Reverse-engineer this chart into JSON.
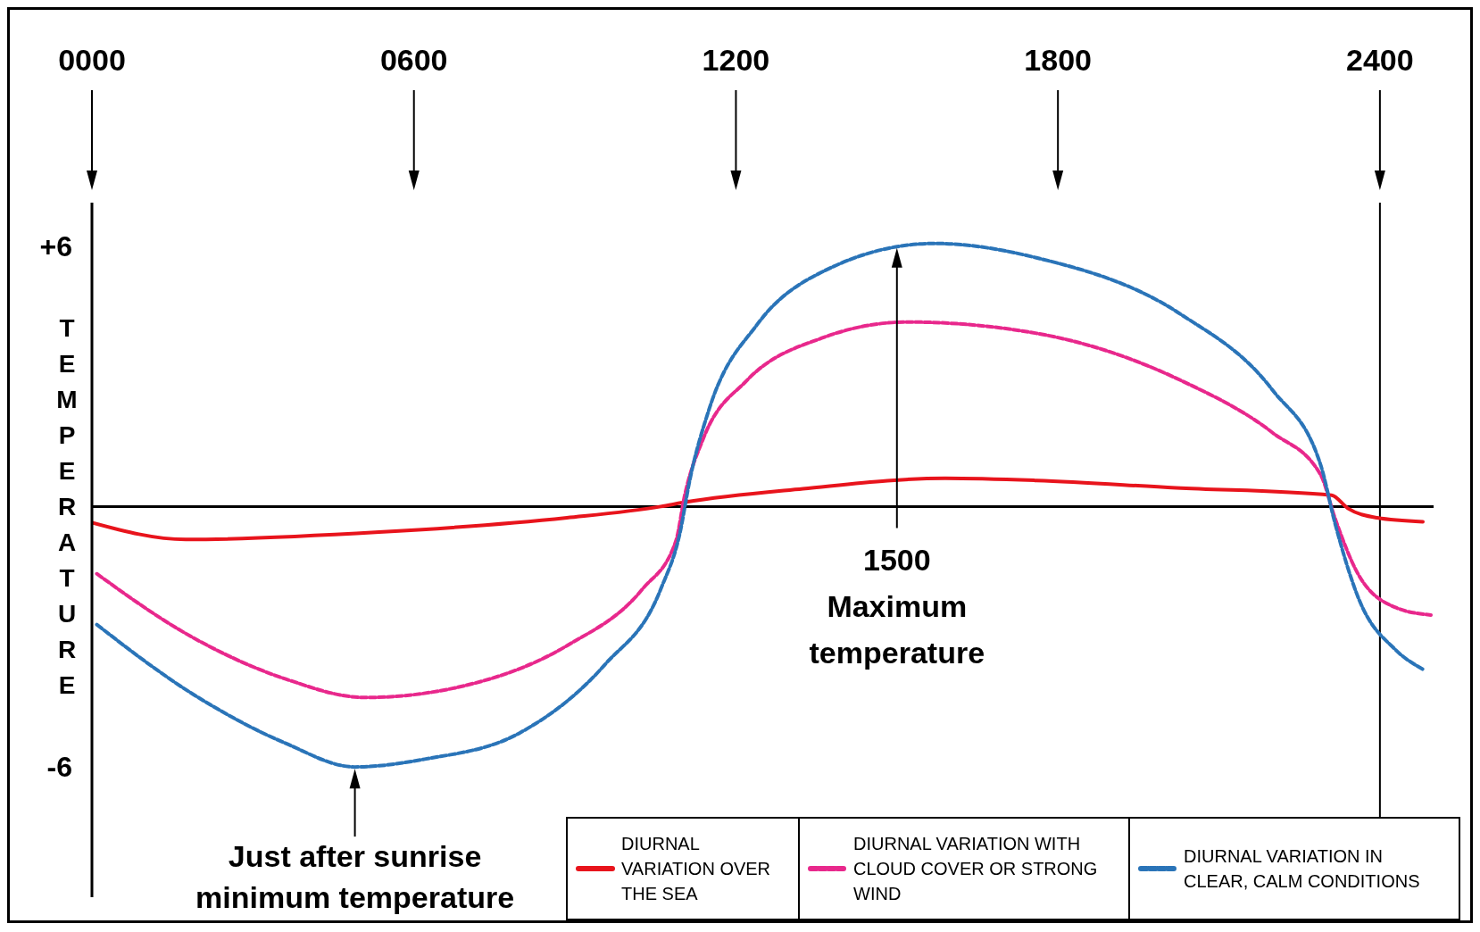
{
  "chart_data": {
    "type": "line",
    "ylabel": "TEMPERATURE",
    "xlim": [
      0,
      2500
    ],
    "ylim": [
      -9,
      7
    ],
    "xticks": [
      {
        "value": 0,
        "label": "0000"
      },
      {
        "value": 600,
        "label": "0600"
      },
      {
        "value": 1200,
        "label": "1200"
      },
      {
        "value": 1800,
        "label": "1800"
      },
      {
        "value": 2400,
        "label": "2400"
      }
    ],
    "yticks": [
      {
        "value": 6,
        "label": "+6"
      },
      -6
    ],
    "grid": false,
    "legend": "bottom right",
    "marker": "none",
    "series": [
      {
        "name": "DIURNAL VARIATION OVER THE SEA",
        "color": "#e8141c",
        "line_style": "solid",
        "x": [
          0,
          175,
          535,
          885,
          1060,
          1105,
          1325,
          1590,
          1760,
          2020,
          2310,
          2340,
          2395,
          2480
        ],
        "values": [
          -0.37,
          -0.76,
          -0.59,
          -0.26,
          0,
          0.1,
          0.41,
          0.65,
          0.6,
          0.43,
          0.26,
          -0.04,
          -0.26,
          -0.35
        ]
      },
      {
        "name": "DIURNAL VARIATION WITH CLOUD COVER OR STRONG WIND",
        "color": "#e8288c",
        "line_style": "dashed",
        "x": [
          9,
          184,
          360,
          509,
          710,
          886,
          1026,
          1088,
          1105,
          1140,
          1220,
          1360,
          1520,
          1760,
          2030,
          2200,
          2290,
          2316,
          2360,
          2430,
          2495
        ],
        "values": [
          -1.55,
          -2.99,
          -3.97,
          -4.4,
          -4.08,
          -3.2,
          -1.9,
          -0.8,
          0.28,
          1.59,
          2.9,
          3.88,
          4.25,
          3.99,
          2.9,
          1.7,
          0.72,
          -0.26,
          -1.57,
          -2.33,
          -2.5
        ]
      },
      {
        "name": "DIURNAL VARIATION IN CLEAR, CALM CONDITIONS",
        "color": "#2a74b8",
        "line_style": "dashed",
        "x": [
          9,
          184,
          360,
          490,
          620,
          798,
          956,
          1060,
          1096,
          1114,
          1150,
          1240,
          1360,
          1570,
          1760,
          2030,
          2200,
          2290,
          2316,
          2360,
          2430,
          2480
        ],
        "values": [
          -2.72,
          -4.29,
          -5.45,
          -6,
          -5.82,
          -5.21,
          -3.64,
          -1.9,
          -0.59,
          0.61,
          2.24,
          4.2,
          5.4,
          6.06,
          5.73,
          4.42,
          2.68,
          0.94,
          -0.37,
          -2.11,
          -3.31,
          -3.75
        ]
      }
    ],
    "ref_lines": [
      {
        "axis": "y",
        "value": 0,
        "color": "#000000"
      },
      {
        "axis": "x",
        "value": 2400,
        "color": "#000000"
      }
    ],
    "annotations": [
      "1500\nMaximum\ntemperature",
      "Just after sunrise\nminimum temperature"
    ]
  }
}
